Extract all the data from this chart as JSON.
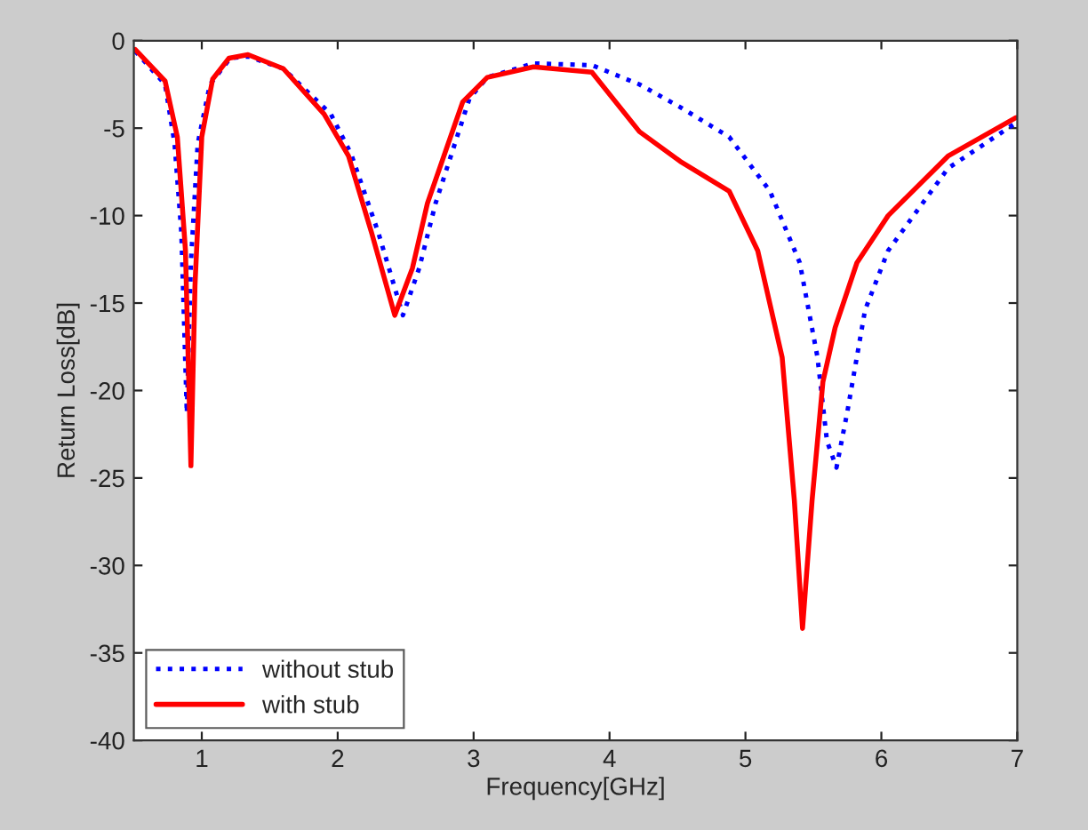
{
  "chart_data": {
    "type": "line",
    "xlabel": "Frequency[GHz]",
    "ylabel": "Return Loss[dB]",
    "xlim": [
      0.5,
      7
    ],
    "ylim": [
      -40,
      0
    ],
    "xticks": [
      1,
      2,
      3,
      4,
      5,
      6,
      7
    ],
    "yticks": [
      -40,
      -35,
      -30,
      -25,
      -20,
      -15,
      -10,
      -5,
      0
    ],
    "grid": false,
    "legend": "bottom left",
    "marker": "none",
    "series": [
      {
        "name": "without stub",
        "color": "#0000ff",
        "line_style": "dotted",
        "x": [
          0.51,
          0.73,
          0.8,
          0.85,
          0.89,
          0.92,
          0.97,
          1.06,
          1.21,
          1.34,
          1.6,
          1.95,
          2.1,
          2.3,
          2.48,
          2.6,
          2.72,
          2.97,
          3.1,
          3.44,
          3.87,
          4.22,
          4.52,
          4.88,
          5.18,
          5.4,
          5.53,
          5.6,
          5.67,
          5.75,
          5.88,
          6.05,
          6.49,
          6.99
        ],
        "values": [
          -0.6,
          -2.5,
          -5.9,
          -11,
          -21.3,
          -12.7,
          -5.9,
          -2.5,
          -1.0,
          -0.9,
          -1.6,
          -4.2,
          -6.5,
          -11,
          -15.7,
          -13,
          -9.3,
          -3.3,
          -2.1,
          -1.3,
          -1.4,
          -2.5,
          -3.8,
          -5.5,
          -8.6,
          -12.7,
          -18.1,
          -22.9,
          -24.4,
          -21.2,
          -15.4,
          -12,
          -7.3,
          -4.7
        ]
      },
      {
        "name": "with stub",
        "color": "#ff0000",
        "line_style": "solid",
        "x": [
          0.51,
          0.73,
          0.82,
          0.88,
          0.92,
          0.95,
          1.0,
          1.08,
          1.2,
          1.34,
          1.6,
          1.9,
          2.08,
          2.25,
          2.42,
          2.55,
          2.66,
          2.92,
          3.1,
          3.44,
          3.87,
          4.22,
          4.52,
          4.88,
          5.09,
          5.27,
          5.36,
          5.42,
          5.49,
          5.57,
          5.66,
          5.82,
          6.05,
          6.49,
          6.99
        ],
        "values": [
          -0.5,
          -2.3,
          -5.5,
          -12,
          -24.3,
          -14,
          -5.5,
          -2.2,
          -1.0,
          -0.8,
          -1.6,
          -4.2,
          -6.6,
          -11,
          -15.7,
          -13,
          -9.3,
          -3.5,
          -2.1,
          -1.5,
          -1.8,
          -5.2,
          -6.9,
          -8.6,
          -12,
          -18.1,
          -26.3,
          -33.6,
          -26.3,
          -19.5,
          -16.4,
          -12.7,
          -10,
          -6.6,
          -4.4
        ]
      }
    ]
  }
}
